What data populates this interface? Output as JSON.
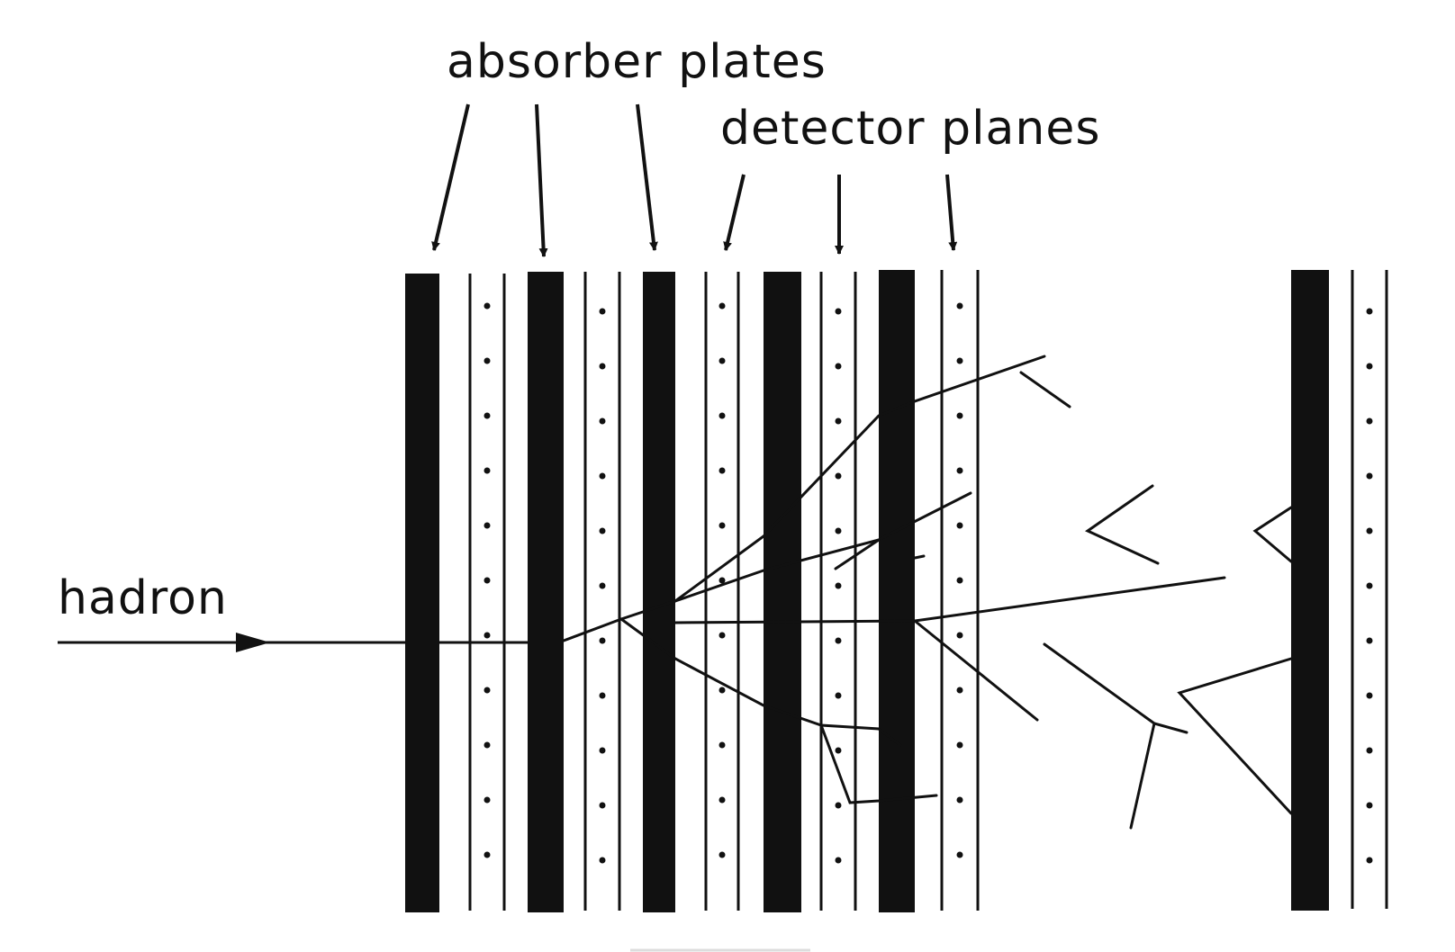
{
  "labels": {
    "absorber": "absorber plates",
    "detector": "detector planes",
    "hadron": "hadron"
  },
  "colors": {
    "ink": "#111111",
    "background": "#ffffff"
  }
}
